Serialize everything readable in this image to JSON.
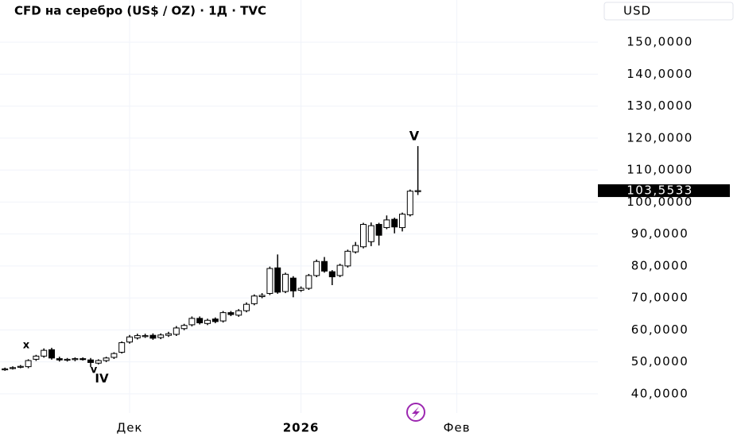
{
  "chart_data": {
    "type": "candlestick",
    "title": "CFD на серебро (US$ / OZ) · 1Д · TVC",
    "currency": "USD",
    "categories": [
      null,
      null,
      null,
      null,
      null,
      null,
      null,
      null,
      null,
      null,
      null,
      null,
      null,
      null,
      null,
      null,
      "Дек",
      null,
      null,
      null,
      null,
      null,
      null,
      null,
      null,
      null,
      null,
      null,
      null,
      null,
      null,
      null,
      null,
      null,
      null,
      null,
      null,
      null,
      "2026",
      null,
      null,
      null,
      null,
      null,
      null,
      null,
      null,
      null,
      null,
      null,
      null,
      null,
      null,
      null,
      null,
      null,
      null,
      null,
      "Фев"
    ],
    "open": [
      47.6,
      48,
      48.4,
      48.5,
      50.8,
      51.8,
      53.8,
      51,
      50.6,
      50.7,
      51,
      50.6,
      49.6,
      50.4,
      51.4,
      53,
      56.2,
      57.5,
      58,
      58.3,
      57.6,
      58.3,
      58.6,
      60.4,
      61.6,
      63.6,
      62,
      63.4,
      62.8,
      65.4,
      64.6,
      66,
      68.2,
      70.4,
      71.4,
      79.4,
      72,
      76.2,
      72.4,
      73,
      77,
      81.4,
      78.2,
      77,
      80,
      84.4,
      86,
      87.6,
      93,
      92,
      94.6,
      92,
      96,
      103.3,
      null,
      null,
      null,
      null,
      null
    ],
    "high": [
      48.2,
      48.6,
      49,
      50.8,
      52.2,
      54.2,
      54.4,
      51.6,
      51.2,
      51.4,
      51.4,
      51.2,
      50.8,
      51.6,
      53,
      56.4,
      58.4,
      58.8,
      58.8,
      58.9,
      58.9,
      59.4,
      61.2,
      61.9,
      64.2,
      64.2,
      63.5,
      63.9,
      65.9,
      65.9,
      66.5,
      68.6,
      71.1,
      71.5,
      79.8,
      83.6,
      77.9,
      76.8,
      73.6,
      77.5,
      82,
      82.8,
      78.7,
      80.7,
      85.1,
      87.5,
      93.5,
      93.6,
      93.5,
      95.8,
      95.1,
      96.7,
      103.9,
      117.5,
      null,
      null,
      null,
      null,
      null
    ],
    "low": [
      47.2,
      47.6,
      48,
      48,
      50.3,
      51.3,
      50.7,
      50.1,
      50.1,
      50.2,
      50.4,
      48.4,
      49.2,
      49.9,
      50.9,
      52.6,
      55.7,
      57,
      57.5,
      56.9,
      57.1,
      57.8,
      58.1,
      59.9,
      61.1,
      61.7,
      61.5,
      62.1,
      62.3,
      64.3,
      64.1,
      65.5,
      67.7,
      69.9,
      70.9,
      71.3,
      71.5,
      70.2,
      71.9,
      72.5,
      76.5,
      77.9,
      74,
      76.5,
      79.5,
      83.9,
      85.5,
      86.2,
      86.4,
      91.5,
      90.2,
      90.8,
      95.5,
      102.2,
      null,
      null,
      null,
      null,
      null
    ],
    "close": [
      47.8,
      48.2,
      48.6,
      50.4,
      51.8,
      53.6,
      51.2,
      50.6,
      50.8,
      51,
      50.8,
      49.8,
      50.4,
      51.2,
      52.6,
      56,
      57.8,
      58.2,
      58.2,
      57.4,
      58.4,
      58.8,
      60.6,
      61.4,
      63.6,
      62.2,
      63,
      62.6,
      65.4,
      64.8,
      66,
      68,
      70.6,
      70.8,
      79.2,
      71.8,
      77.4,
      72.2,
      73,
      77,
      81.4,
      78.4,
      76.6,
      80.2,
      84.6,
      86.4,
      93,
      92.6,
      89.6,
      94.4,
      92.2,
      96.2,
      103.4,
      103.5533,
      null,
      null,
      null,
      null,
      null
    ],
    "up_color": "#ffffff",
    "down_color": "#000000",
    "wick_color": "#000000",
    "last_price": {
      "value": 103.5533,
      "label": "103,5533"
    },
    "annotations": [
      "x",
      "v",
      "IV",
      "V"
    ],
    "ylim": [
      34,
      163.2
    ],
    "yticks": [
      {
        "value": 40,
        "label": "40,0000"
      },
      {
        "value": 50,
        "label": "50,0000"
      },
      {
        "value": 60,
        "label": "60,0000"
      },
      {
        "value": 70,
        "label": "70,0000"
      },
      {
        "value": 80,
        "label": "80,0000"
      },
      {
        "value": 90,
        "label": "90,0000"
      },
      {
        "value": 100,
        "label": "100,0000"
      },
      {
        "value": 110,
        "label": "110,0000"
      },
      {
        "value": 120,
        "label": "120,0000"
      },
      {
        "value": 130,
        "label": "130,0000"
      },
      {
        "value": 140,
        "label": "140,0000"
      },
      {
        "value": 150,
        "label": "150,0000"
      }
    ],
    "grid": true
  }
}
